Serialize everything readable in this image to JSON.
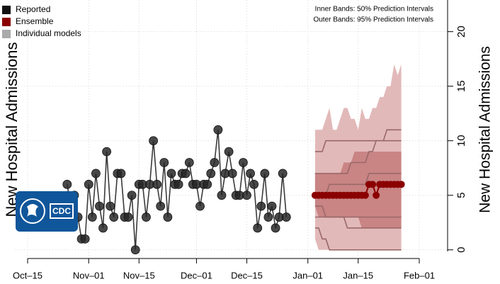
{
  "chart_data": {
    "type": "line",
    "ylabel": "New Hospital Admissions",
    "annotations": [
      "Inner Bands: 50% Prediction Intervals",
      "Outer Bands: 95% Prediction Intervals"
    ],
    "logo": {
      "text": "CDC"
    },
    "xlim": [
      "10-15",
      "02-01"
    ],
    "xticks": [
      {
        "value": "10-15",
        "label": "Oct–15"
      },
      {
        "value": "11-01",
        "label": "Nov–01"
      },
      {
        "value": "11-15",
        "label": "Nov–15"
      },
      {
        "value": "12-01",
        "label": "Dec–01"
      },
      {
        "value": "12-15",
        "label": "Dec–15"
      },
      {
        "value": "01-01",
        "label": "Jan–01"
      },
      {
        "value": "01-15",
        "label": "Jan–15"
      },
      {
        "value": "02-01",
        "label": "Feb–01"
      }
    ],
    "ylim": [
      -0.6,
      22.9
    ],
    "yticks": [
      0,
      5,
      10,
      15,
      20
    ],
    "grid": true,
    "legend": "top-left",
    "series": [
      {
        "name": "Reported",
        "color": "#111111",
        "x": [
          "10-26",
          "10-27",
          "10-28",
          "10-29",
          "10-30",
          "10-31",
          "11-01",
          "11-02",
          "11-03",
          "11-04",
          "11-05",
          "11-06",
          "11-07",
          "11-08",
          "11-09",
          "11-10",
          "11-11",
          "11-12",
          "11-13",
          "11-14",
          "11-15",
          "11-16",
          "11-17",
          "11-18",
          "11-19",
          "11-20",
          "11-21",
          "11-22",
          "11-23",
          "11-24",
          "11-25",
          "11-26",
          "11-27",
          "11-28",
          "11-29",
          "11-30",
          "12-01",
          "12-02",
          "12-03",
          "12-04",
          "12-05",
          "12-06",
          "12-07",
          "12-08",
          "12-09",
          "12-10",
          "12-11",
          "12-12",
          "12-13",
          "12-14",
          "12-15",
          "12-16",
          "12-17",
          "12-18",
          "12-19",
          "12-20",
          "12-21",
          "12-22",
          "12-23",
          "12-24",
          "12-25",
          "12-26"
        ],
        "values": [
          6,
          4,
          5,
          3,
          1,
          1,
          6,
          3,
          7,
          4,
          2,
          9,
          4,
          3,
          7,
          7,
          3,
          3,
          5,
          0,
          6,
          6,
          3,
          6,
          10,
          6,
          4,
          8,
          3,
          7,
          6,
          6,
          7,
          7,
          8,
          6,
          6,
          4,
          6,
          6,
          7,
          8,
          11,
          5,
          7,
          9,
          7,
          5,
          5,
          8,
          5,
          7,
          6,
          2,
          4,
          7,
          3,
          4,
          2,
          3,
          7,
          3
        ]
      },
      {
        "name": "Ensemble",
        "color": "#8b0000",
        "x": [
          "01-03",
          "01-04",
          "01-05",
          "01-06",
          "01-07",
          "01-08",
          "01-09",
          "01-10",
          "01-11",
          "01-12",
          "01-13",
          "01-14",
          "01-15",
          "01-16",
          "01-17",
          "01-18",
          "01-19",
          "01-20",
          "01-21",
          "01-22",
          "01-23",
          "01-24",
          "01-25",
          "01-26",
          "01-27"
        ],
        "values": [
          5,
          5,
          5,
          5,
          5,
          5,
          5,
          5,
          5,
          5,
          5,
          5,
          5,
          5,
          5,
          6,
          6,
          5,
          6,
          6,
          6,
          6,
          6,
          6,
          6
        ],
        "outer_color": "#e2b9b9",
        "inner_color": "#c98484",
        "outer_upper": [
          11,
          11,
          11,
          12,
          13,
          11,
          11,
          12,
          13,
          13,
          12,
          12,
          11,
          13,
          12,
          12,
          13,
          13,
          14,
          14,
          15,
          15,
          17,
          16,
          17
        ],
        "outer_lower": [
          1,
          0,
          0,
          0,
          0,
          0,
          0,
          0,
          0,
          0,
          0,
          0,
          0,
          0,
          0,
          0,
          0,
          0,
          0,
          0,
          0,
          0,
          0,
          0,
          0
        ],
        "inner_upper": [
          7,
          7,
          7,
          7,
          7,
          7,
          7,
          7,
          8,
          8,
          8,
          9,
          9,
          9,
          9,
          9,
          9,
          9,
          9,
          9,
          9,
          9,
          9,
          9,
          9
        ],
        "inner_lower": [
          4,
          3,
          3,
          3,
          3,
          3,
          3,
          3,
          3,
          3,
          3,
          3,
          3,
          2,
          2,
          2,
          2,
          2,
          2,
          2,
          2,
          2,
          2,
          2,
          2
        ]
      },
      {
        "name": "Individual models",
        "color": "#aaaaaa",
        "line_color": "#9a6868",
        "lines": [
          [
            9,
            9,
            9,
            10,
            10,
            10,
            10,
            10,
            10,
            10,
            10,
            10,
            10,
            10,
            10,
            10,
            10,
            10,
            10,
            10,
            11,
            11,
            11,
            11,
            11
          ],
          [
            7,
            7,
            7,
            7,
            7,
            7,
            7,
            7,
            7,
            7,
            8,
            8,
            8,
            8,
            8,
            9,
            9,
            10,
            10,
            10,
            10,
            10,
            10,
            10,
            10
          ],
          [
            5,
            5,
            5,
            5,
            6,
            6,
            6,
            6,
            6,
            6,
            6,
            6,
            6,
            6,
            6,
            7,
            7,
            7,
            7,
            7,
            7,
            7,
            7,
            7,
            7
          ],
          [
            3,
            3,
            3,
            3,
            3,
            3,
            3,
            3,
            3,
            3,
            3,
            3,
            3,
            3,
            3,
            3,
            3,
            3,
            3,
            3,
            3,
            3,
            3,
            3,
            3
          ],
          [
            4,
            4,
            4,
            3,
            3,
            3,
            3,
            3,
            3,
            2,
            2,
            2,
            2,
            2,
            2,
            2,
            2,
            2,
            2,
            2,
            2,
            2,
            2,
            2,
            2
          ],
          [
            2,
            2,
            1,
            1,
            0,
            0,
            0,
            0,
            0,
            0,
            0,
            0,
            0,
            0,
            0,
            0,
            0,
            0,
            0,
            0,
            0,
            0,
            0,
            0,
            0
          ]
        ]
      }
    ]
  }
}
